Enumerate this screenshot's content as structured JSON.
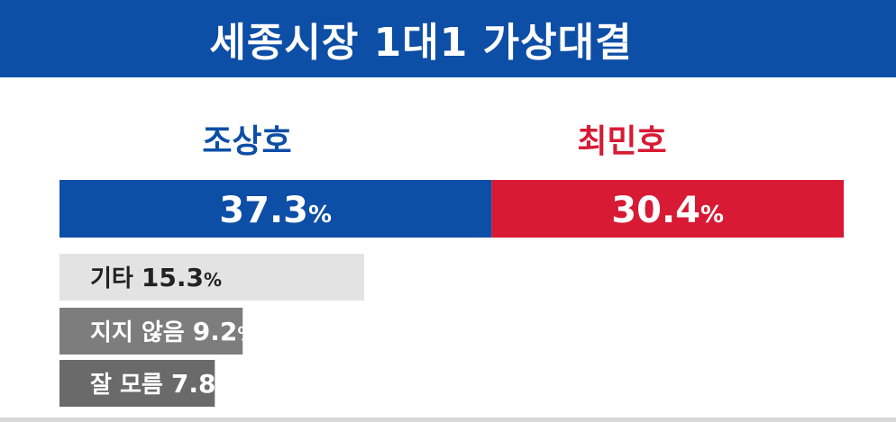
{
  "header": {
    "title": "세종시장 1대1 가상대결"
  },
  "colors": {
    "header_bg": "#0d4ea6",
    "candidate_a": "#0d4ea6",
    "candidate_b": "#d81a34",
    "others": [
      "#e3e3e3",
      "#7d7d7d",
      "#6a6a6a"
    ]
  },
  "chart_data": {
    "type": "bar",
    "candidates": [
      {
        "name": "조상호",
        "value": 37.3,
        "label": "37.3",
        "unit": "%"
      },
      {
        "name": "최민호",
        "value": 30.4,
        "label": "30.4",
        "unit": "%"
      }
    ],
    "others": [
      {
        "name": "기타",
        "value": 15.3,
        "label": "15.3",
        "unit": "%"
      },
      {
        "name": "지지 않음",
        "value": 9.2,
        "label": "9.2",
        "unit": "%"
      },
      {
        "name": "잘 모름",
        "value": 7.8,
        "label": "7.8",
        "unit": "%"
      }
    ]
  }
}
